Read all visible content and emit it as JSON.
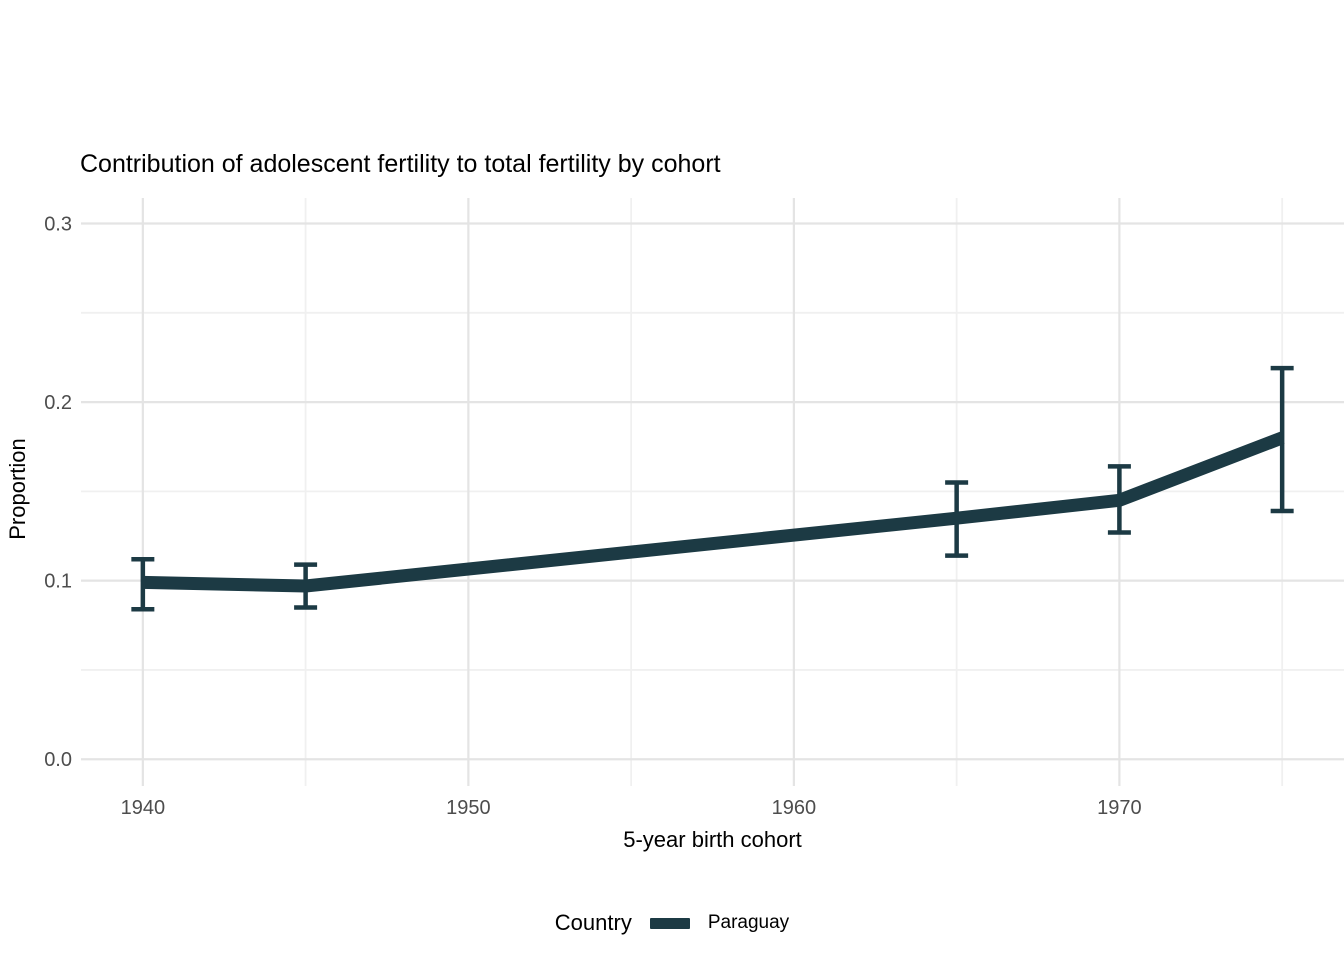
{
  "colors": {
    "background": "#ffffff",
    "line": "#1c3a44",
    "grid_major": "#e4e4e4",
    "grid_minor": "#f0f0f0",
    "tick_label": "#4d4d4d",
    "text": "#000000"
  },
  "chart_data": {
    "type": "line",
    "title": "Contribution of adolescent fertility to total fertility by cohort",
    "xlabel": "5-year birth cohort",
    "ylabel": "Proportion",
    "grid": true,
    "legend": {
      "title": "Country",
      "position": "bottom",
      "entries": [
        {
          "label": "Paraguay",
          "color": "#1c3a44"
        }
      ]
    },
    "xlim": [
      1938.1,
      1976.9
    ],
    "ylim": [
      -0.015,
      0.3143
    ],
    "x_ticks": [
      {
        "value": 1940,
        "label": "1940"
      },
      {
        "value": 1950,
        "label": "1950"
      },
      {
        "value": 1960,
        "label": "1960"
      },
      {
        "value": 1970,
        "label": "1970"
      }
    ],
    "x_minor_ticks": [
      1945,
      1955,
      1965,
      1975
    ],
    "y_ticks": [
      {
        "value": 0.0,
        "label": "0.0"
      },
      {
        "value": 0.1,
        "label": "0.1"
      },
      {
        "value": 0.2,
        "label": "0.2"
      },
      {
        "value": 0.3,
        "label": "0.3"
      }
    ],
    "y_minor_ticks": [
      0.05,
      0.15,
      0.25
    ],
    "series": [
      {
        "name": "Paraguay",
        "color": "#1c3a44",
        "error_bars": true,
        "points": [
          {
            "x": 1940,
            "y": 0.099,
            "ymin": 0.084,
            "ymax": 0.112
          },
          {
            "x": 1945,
            "y": 0.097,
            "ymin": 0.085,
            "ymax": 0.109
          },
          {
            "x": 1965,
            "y": 0.135,
            "ymin": 0.114,
            "ymax": 0.155
          },
          {
            "x": 1970,
            "y": 0.145,
            "ymin": 0.127,
            "ymax": 0.164
          },
          {
            "x": 1975,
            "y": 0.18,
            "ymin": 0.139,
            "ymax": 0.219
          }
        ]
      }
    ]
  }
}
